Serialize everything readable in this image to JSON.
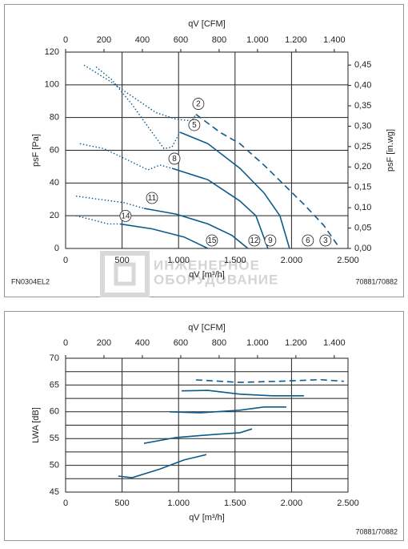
{
  "chart_data": [
    {
      "type": "line",
      "xlabel": "qV [m³/h]",
      "x2label": "qV [CFM]",
      "ylabel": "psF [Pa]",
      "y2label": "psF [in.wg]",
      "xlim": [
        0,
        2500
      ],
      "xticks": [
        0,
        500,
        {
          "value": 1000,
          "label": "1.000"
        },
        {
          "value": 1500,
          "label": "1.500"
        },
        {
          "value": 2000,
          "label": "2.000"
        },
        {
          "value": 2500,
          "label": "2.500"
        }
      ],
      "x2lim": [
        0,
        1471.5
      ],
      "x2ticks": [
        0,
        200,
        400,
        600,
        800,
        {
          "value": 1000,
          "label": "1.000"
        },
        {
          "value": 1200,
          "label": "1.200"
        },
        {
          "value": 1400,
          "label": "1.400"
        }
      ],
      "ylim": [
        0,
        120
      ],
      "yticks": [
        0,
        20,
        40,
        60,
        80,
        100,
        120
      ],
      "y2lim": [
        0,
        0.4818
      ],
      "y2ticks": [
        {
          "value": 0,
          "label": "0,00"
        },
        {
          "value": 0.05,
          "label": "0,05"
        },
        {
          "value": 0.1,
          "label": "0,10"
        },
        {
          "value": 0.15,
          "label": "0,15"
        },
        {
          "value": 0.2,
          "label": "0,20"
        },
        {
          "value": 0.25,
          "label": "0,25"
        },
        {
          "value": 0.3,
          "label": "0,30"
        },
        {
          "value": 0.35,
          "label": "0,35"
        },
        {
          "value": 0.4,
          "label": "0,40"
        },
        {
          "value": 0.45,
          "label": "0,45"
        }
      ],
      "grid": true,
      "footer_left": "FN0304EL2",
      "footer_right": "70881/70882",
      "series": [
        {
          "labels": [
            "2",
            "3"
          ],
          "style": "dashed",
          "color": "#0d5a8c",
          "stall_x": [
            163,
            375,
            588,
            800,
            977,
            1119,
            1154
          ],
          "stall_y": [
            112,
            103,
            93,
            83,
            79,
            78,
            82
          ],
          "x": [
            1154,
            1366,
            1543,
            1756,
            1933,
            2110,
            2287,
            2428
          ],
          "values": [
            82,
            71,
            64,
            51,
            39,
            27,
            14,
            0
          ]
        },
        {
          "labels": [
            "5",
            "6"
          ],
          "style": "solid",
          "color": "#0d5a8c",
          "stall_x": [
            269,
            411,
            588,
            765,
            871,
            942,
            1012
          ],
          "stall_y": [
            111,
            103,
            88,
            71,
            61,
            62,
            71
          ],
          "x": [
            1012,
            1260,
            1543,
            1756,
            1897,
            1982
          ],
          "values": [
            71,
            64,
            49,
            34,
            20,
            0
          ]
        },
        {
          "labels": [
            "8",
            "9"
          ],
          "style": "solid",
          "color": "#0d5a8c",
          "stall_x": [
            127,
            340,
            552,
            729,
            835,
            942
          ],
          "stall_y": [
            64,
            61,
            54,
            48,
            51,
            49
          ],
          "x": [
            942,
            1260,
            1543,
            1685,
            1791
          ],
          "values": [
            49,
            42,
            29,
            20,
            0
          ]
        },
        {
          "labels": [
            "11",
            "12"
          ],
          "style": "solid",
          "color": "#0d5a8c",
          "stall_x": [
            92,
            304,
            517,
            694
          ],
          "stall_y": [
            32,
            30,
            28,
            24.5
          ],
          "x": [
            694,
            977,
            1260,
            1473,
            1614
          ],
          "values": [
            24.5,
            21,
            15,
            8,
            0
          ]
        },
        {
          "labels": [
            "14",
            "15"
          ],
          "style": "solid",
          "color": "#0d5a8c",
          "stall_x": [
            92,
            233,
            375,
            481
          ],
          "stall_y": [
            20,
            17.6,
            15,
            15
          ],
          "x": [
            481,
            764,
            1048,
            1260
          ],
          "values": [
            15,
            12,
            7,
            0
          ]
        }
      ]
    },
    {
      "type": "line",
      "xlabel": "qV [m³/h]",
      "x2label": "qV [CFM]",
      "ylabel": "LWA [dB]",
      "xlim": [
        0,
        2500
      ],
      "xticks": [
        0,
        500,
        {
          "value": 1000,
          "label": "1.000"
        },
        {
          "value": 1500,
          "label": "1.500"
        },
        {
          "value": 2000,
          "label": "2.000"
        },
        {
          "value": 2500,
          "label": "2.500"
        }
      ],
      "x2lim": [
        0,
        1471.5
      ],
      "x2ticks": [
        0,
        200,
        400,
        600,
        800,
        {
          "value": 1000,
          "label": "1.000"
        },
        {
          "value": 1200,
          "label": "1.200"
        },
        {
          "value": 1400,
          "label": "1.400"
        }
      ],
      "ylim": [
        45,
        70
      ],
      "yticks": [
        45,
        50,
        55,
        60,
        65,
        70
      ],
      "yminor": [
        47.5,
        52.5,
        57.5,
        62.5,
        67.5
      ],
      "grid": true,
      "footer_right": "70881/70882",
      "series": [
        {
          "style": "dashed",
          "color": "#0d5a8c",
          "x": [
            1154,
            1543,
            1897,
            2251,
            2464
          ],
          "values": [
            65.96,
            65.5,
            65.7,
            66.0,
            65.7
          ]
        },
        {
          "style": "solid",
          "color": "#0d5a8c",
          "x": [
            1027,
            1260,
            1543,
            1827,
            2110
          ],
          "values": [
            63.9,
            64.0,
            63.3,
            63.0,
            63.0
          ]
        },
        {
          "style": "solid",
          "color": "#0d5a8c",
          "x": [
            920,
            1189,
            1543,
            1756,
            1954
          ],
          "values": [
            60.0,
            59.8,
            60.3,
            60.9,
            60.9
          ]
        },
        {
          "style": "solid",
          "color": "#0d5a8c",
          "x": [
            694,
            977,
            1331,
            1543,
            1650
          ],
          "values": [
            54.1,
            55.2,
            55.8,
            56.1,
            56.8
          ]
        },
        {
          "style": "solid",
          "color": "#0d5a8c",
          "x": [
            467,
            588,
            835,
            1048,
            1246
          ],
          "values": [
            48.0,
            47.7,
            49.3,
            51.0,
            52.0
          ]
        }
      ]
    }
  ],
  "watermark": [
    "ИНЖЕНЕРНОЕ",
    "ОБОРУДОВАНИЕ"
  ]
}
